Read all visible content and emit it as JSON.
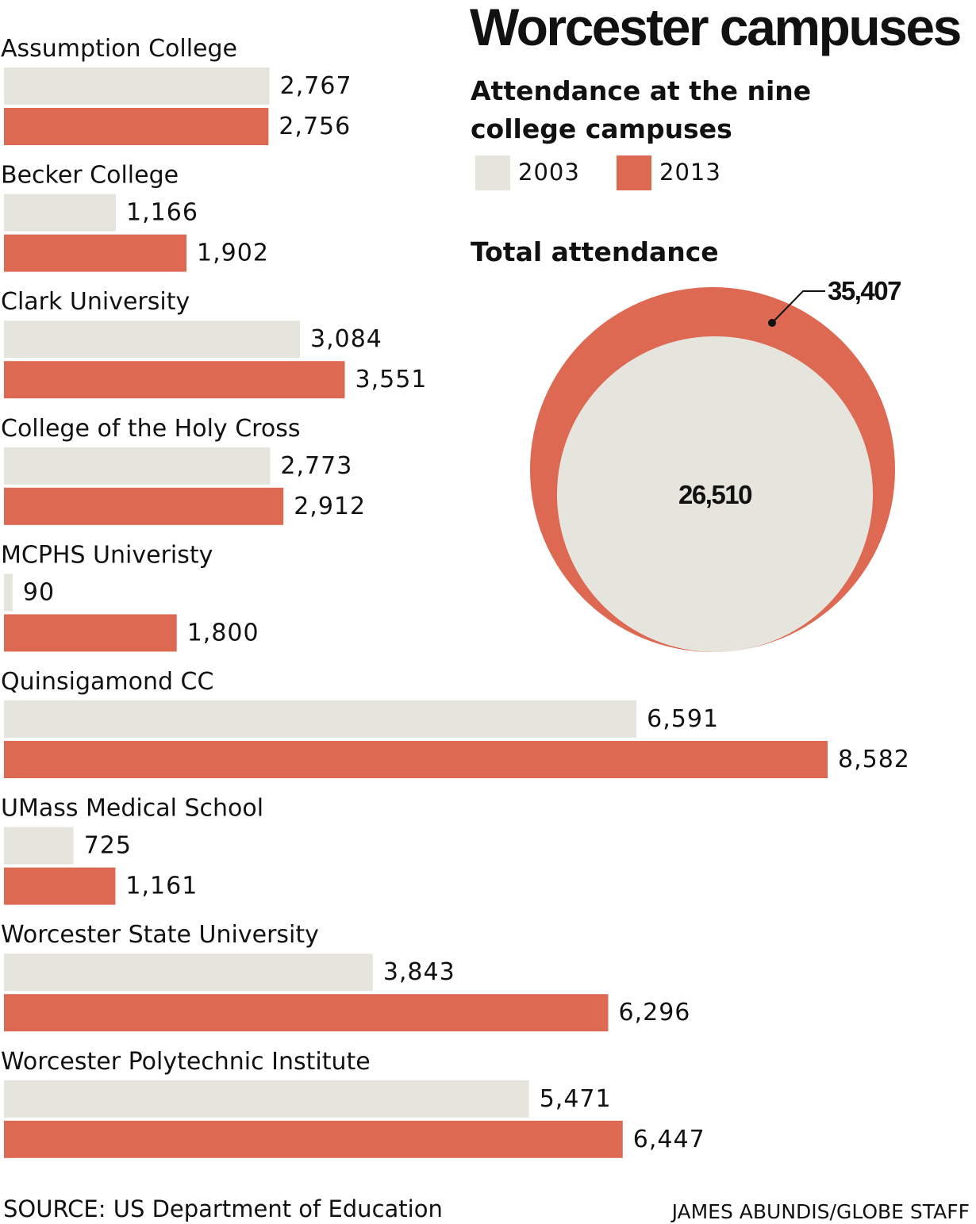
{
  "title": "Worcester campuses",
  "subtitle": "Attendance at the nine college campuses",
  "total_heading": "Total attendance",
  "source": "SOURCE: US Department of Education",
  "credit": "JAMES ABUNDIS/GLOBE STAFF",
  "colors": {
    "2003": "#e6e5dd",
    "2013": "#dd6953",
    "text": "#111111"
  },
  "chart_data": [
    {
      "type": "bar",
      "orientation": "horizontal",
      "categories": [
        "Assumption College",
        "Becker College",
        "Clark University",
        "College of the Holy Cross",
        "MCPHS Univeristy",
        "Quinsigamond CC",
        "UMass Medical School",
        "Worcester State University",
        "Worcester Polytechnic Institute"
      ],
      "series": [
        {
          "name": "2003",
          "values": [
            2767,
            1166,
            3084,
            2773,
            90,
            6591,
            725,
            3843,
            5471
          ]
        },
        {
          "name": "2013",
          "values": [
            2756,
            1902,
            3551,
            2912,
            1800,
            8582,
            1161,
            6296,
            6447
          ]
        }
      ],
      "value_labels": {
        "2003": [
          "2,767",
          "1,166",
          "3,084",
          "2,773",
          "90",
          "6,591",
          "725",
          "3,843",
          "5,471"
        ],
        "2013": [
          "2,756",
          "1,902",
          "3,551",
          "2,912",
          "1,800",
          "8,582",
          "1,161",
          "6,296",
          "6,447"
        ]
      },
      "legend": [
        {
          "label": "2003",
          "color": "#e6e5dd"
        },
        {
          "label": "2013",
          "color": "#dd6953"
        }
      ],
      "legend_position": "top-right",
      "xlim": [
        0,
        8582
      ],
      "grid": false
    },
    {
      "type": "bubble",
      "title": "Total attendance",
      "series": [
        {
          "name": "2013",
          "value": 35407,
          "label": "35,407"
        },
        {
          "name": "2003",
          "value": 26510,
          "label": "26,510"
        }
      ]
    }
  ]
}
